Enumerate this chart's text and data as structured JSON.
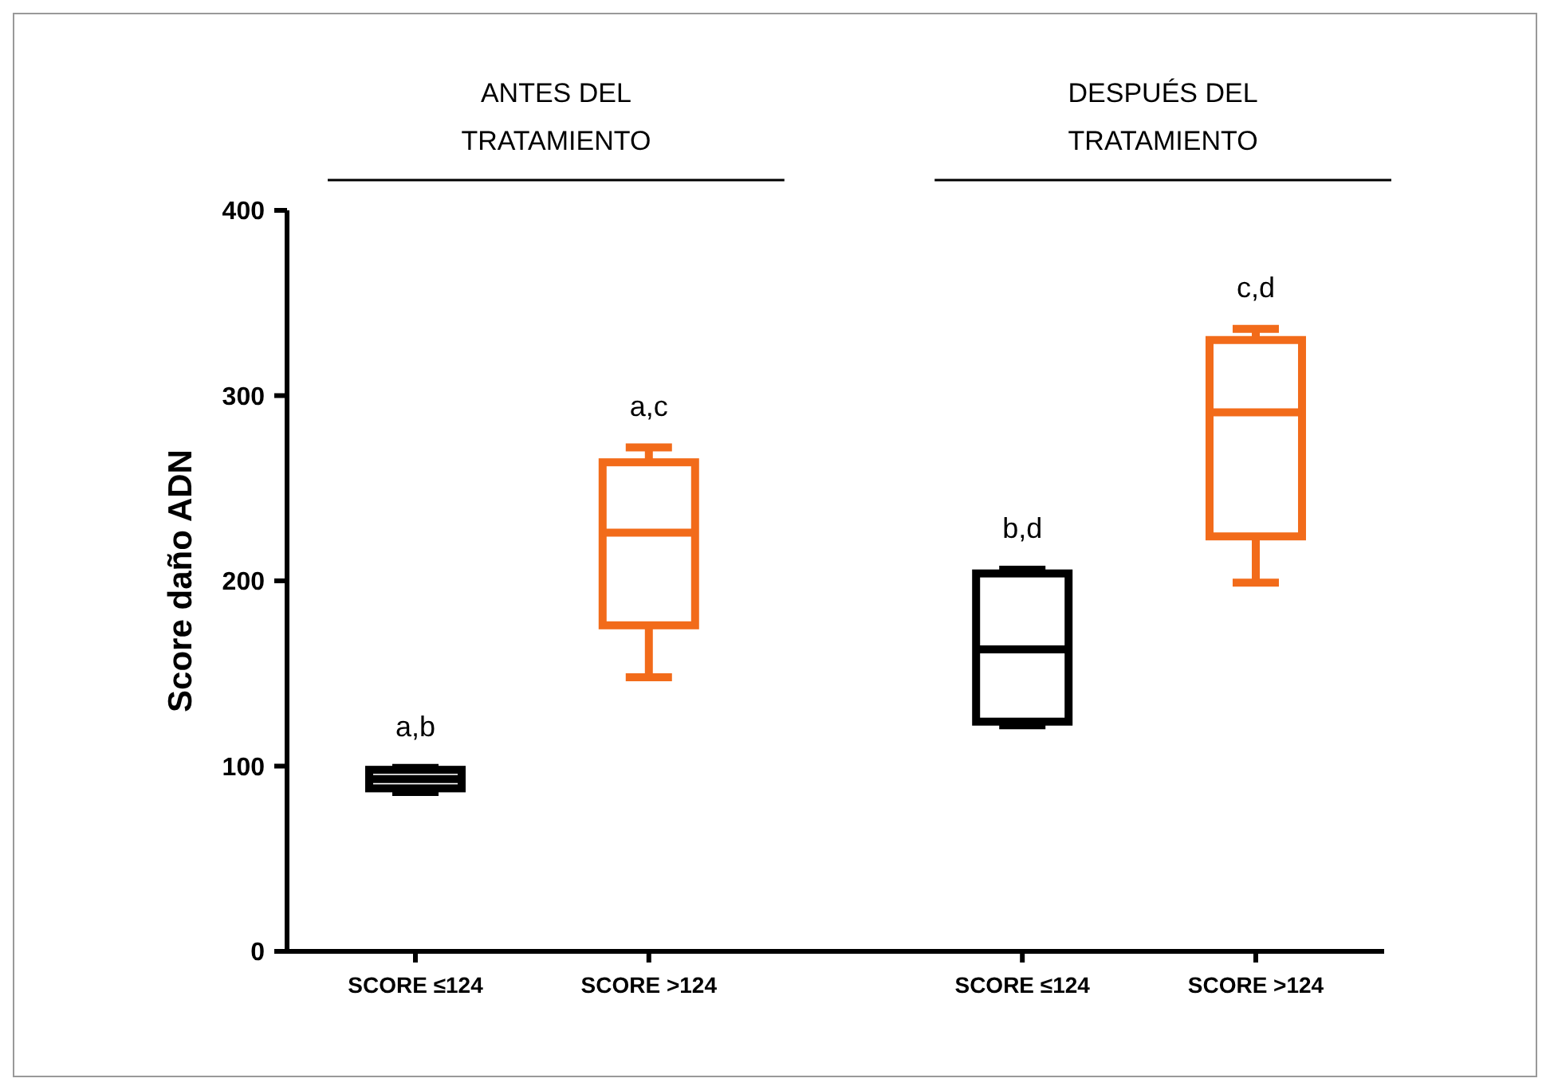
{
  "chart_data": {
    "type": "box",
    "ylabel": "Score daño ADN",
    "categories": [
      "SCORE ≤124",
      "SCORE >124",
      "SCORE ≤124",
      "SCORE >124"
    ],
    "boxes": [
      {
        "low": 86,
        "q1": 88,
        "median": 93,
        "q3": 98,
        "high": 99
      },
      {
        "low": 148,
        "q1": 176,
        "median": 226,
        "q3": 264,
        "high": 272
      },
      {
        "low": 122,
        "q1": 124,
        "median": 163,
        "q3": 204,
        "high": 206
      },
      {
        "low": 199,
        "q1": 224,
        "median": 291,
        "q3": 330,
        "high": 336
      }
    ],
    "colors": [
      "#000000",
      "#f26b1a",
      "#000000",
      "#f26b1a"
    ],
    "ylim": [
      0,
      400
    ],
    "yticks": [
      0,
      100,
      200,
      300,
      400
    ],
    "grid": false,
    "annotations": [
      "ANTES DEL TRATAMIENTO",
      "DESPUÉS DEL TRATAMIENTO",
      {
        "text": "a,b",
        "y": 99
      },
      {
        "text": "a,c",
        "y": 272
      },
      {
        "text": "b,d",
        "y": 206
      },
      {
        "text": "c,d",
        "y": 336
      }
    ]
  }
}
